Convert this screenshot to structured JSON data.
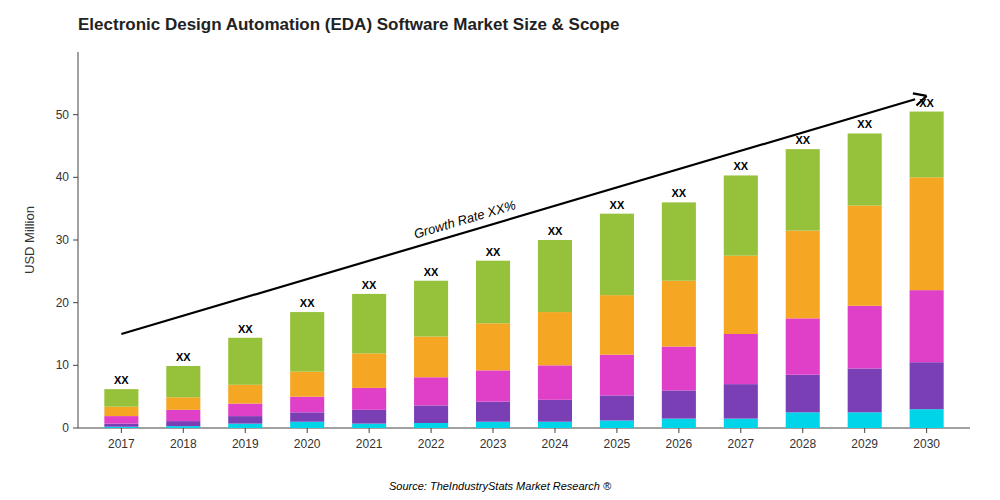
{
  "chart_data": {
    "type": "bar",
    "stacked": true,
    "title": "Electronic Design Automation (EDA) Software Market Size & Scope",
    "ylabel": "USD Million",
    "categories": [
      "2017",
      "2018",
      "2019",
      "2020",
      "2021",
      "2022",
      "2023",
      "2024",
      "2025",
      "2026",
      "2027",
      "2028",
      "2029",
      "2030"
    ],
    "series": [
      {
        "color": "#00d4e8",
        "values": [
          0.2,
          0.3,
          0.7,
          1.0,
          0.7,
          0.8,
          1.0,
          1.0,
          1.2,
          1.5,
          1.5,
          2.5,
          2.5,
          3.0
        ]
      },
      {
        "color": "#7b3fb5",
        "values": [
          0.5,
          0.8,
          1.2,
          1.5,
          2.2,
          2.8,
          3.2,
          3.5,
          4.0,
          4.5,
          5.5,
          6.0,
          7.0,
          7.5
        ]
      },
      {
        "color": "#e040c8",
        "values": [
          1.2,
          1.8,
          2.0,
          2.5,
          3.5,
          4.5,
          5.0,
          5.5,
          6.5,
          7.0,
          8.0,
          9.0,
          10.0,
          11.5
        ]
      },
      {
        "color": "#f5a623",
        "values": [
          1.5,
          2.0,
          3.0,
          4.0,
          5.5,
          6.5,
          7.5,
          8.5,
          9.5,
          10.5,
          12.5,
          14.0,
          16.0,
          18.0
        ]
      },
      {
        "color": "#96c13a",
        "values": [
          2.8,
          5.0,
          7.5,
          9.5,
          9.5,
          8.9,
          10.0,
          11.5,
          13.0,
          12.5,
          12.8,
          13.0,
          11.5,
          10.5
        ]
      }
    ],
    "ylim": [
      0,
      60
    ],
    "yticks": [
      0,
      10,
      20,
      30,
      40,
      50
    ],
    "grid": false,
    "annotations": [
      {
        "text": "XX",
        "category": "2017"
      },
      {
        "text": "XX",
        "category": "2018"
      },
      {
        "text": "XX",
        "category": "2019"
      },
      {
        "text": "XX",
        "category": "2020"
      },
      {
        "text": "XX",
        "category": "2021"
      },
      {
        "text": "XX",
        "category": "2022"
      },
      {
        "text": "XX",
        "category": "2023"
      },
      {
        "text": "XX",
        "category": "2024"
      },
      {
        "text": "XX",
        "category": "2025"
      },
      {
        "text": "XX",
        "category": "2026"
      },
      {
        "text": "XX",
        "category": "2027"
      },
      {
        "text": "XX",
        "category": "2028"
      },
      {
        "text": "XX",
        "category": "2029"
      },
      {
        "text": "XX",
        "category": "2030"
      },
      {
        "text": "Growth Rate XX%",
        "x": [
          "2017",
          "2030"
        ],
        "y": [
          15.0,
          53.0
        ]
      },
      {
        "text": "Source: TheIndustryStats Market Research ®"
      }
    ]
  }
}
